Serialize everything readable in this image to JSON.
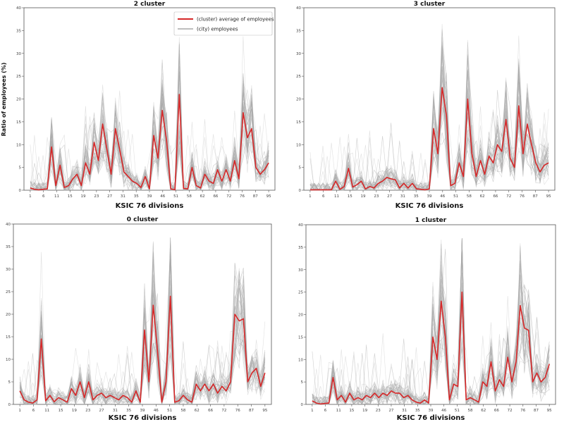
{
  "figure": {
    "ylabel": "Ratio of employees (%)"
  },
  "legend": {
    "avg_label": "(cluster) average of employees",
    "city_label": "(city) employees",
    "avg_color": "#d62728",
    "city_color": "#a9a9a9"
  },
  "chart_data": [
    {
      "type": "line",
      "title": "2 cluster",
      "xlabel": "KSIC 76 divisions",
      "ylabel": "Ratio of employees (%)",
      "ylim": [
        0,
        40
      ],
      "yticks": [
        0,
        5,
        10,
        15,
        20,
        25,
        30,
        35,
        40
      ],
      "xticks": [
        "1",
        "6",
        "11",
        "15",
        "19",
        "23",
        "27",
        "31",
        "35",
        "39",
        "46",
        "51",
        "58",
        "62",
        "66",
        "72",
        "76",
        "87",
        "95"
      ],
      "legend_position": "top-center",
      "series": [
        {
          "name": "(cluster) average of employees",
          "values": [
            0.5,
            0.2,
            0.1,
            0.2,
            0.3,
            9.5,
            1.0,
            5.5,
            0.6,
            1.0,
            2.5,
            3.5,
            1.0,
            6.0,
            3.5,
            10.5,
            6.5,
            14.5,
            9.0,
            3.5,
            13.5,
            9.0,
            4.0,
            3.0,
            2.0,
            1.5,
            0.6,
            3.0,
            0.3,
            12.0,
            7.0,
            17.5,
            11.0,
            0.3,
            0.1,
            21.0,
            0.4,
            0.3,
            5.0,
            1.0,
            0.5,
            3.5,
            2.0,
            1.5,
            4.5,
            2.0,
            4.5,
            2.0,
            6.5,
            2.5,
            17.0,
            11.5,
            13.5,
            5.0,
            3.5,
            4.5,
            6.0
          ]
        }
      ]
    },
    {
      "type": "line",
      "title": "3 cluster",
      "xlabel": "KSIC 76 divisions",
      "ylabel": "",
      "ylim": [
        0,
        40
      ],
      "yticks": [
        0,
        5,
        10,
        15,
        20,
        25,
        30,
        35,
        40
      ],
      "xticks": [
        "1",
        "6",
        "11",
        "15",
        "19",
        "23",
        "27",
        "31",
        "35",
        "39",
        "46",
        "51",
        "58",
        "62",
        "66",
        "72",
        "76",
        "87",
        "95"
      ],
      "series": [
        {
          "name": "(cluster) average of employees",
          "values": [
            0.1,
            0.1,
            0.1,
            0.1,
            0.1,
            0.1,
            2.0,
            0.2,
            0.8,
            4.8,
            0.7,
            1.2,
            2.0,
            0.3,
            0.8,
            0.5,
            1.5,
            2.0,
            2.8,
            2.5,
            2.3,
            0.5,
            1.5,
            0.5,
            1.5,
            0.3,
            0.2,
            0.1,
            0.3,
            13.5,
            8.0,
            22.5,
            16.5,
            1.0,
            1.5,
            6.0,
            3.0,
            20.0,
            8.0,
            3.0,
            6.5,
            3.5,
            7.5,
            6.0,
            10.0,
            8.5,
            15.5,
            7.0,
            5.0,
            18.5,
            8.0,
            14.5,
            10.0,
            6.0,
            4.0,
            5.5,
            6.0
          ]
        }
      ]
    },
    {
      "type": "line",
      "title": "0 cluster",
      "xlabel": "KSIC 76 divisions",
      "ylabel": "",
      "ylim": [
        0,
        40
      ],
      "yticks": [
        0,
        5,
        10,
        15,
        20,
        25,
        30,
        35,
        40
      ],
      "xticks": [
        "1",
        "6",
        "11",
        "15",
        "19",
        "23",
        "27",
        "31",
        "35",
        "39",
        "46",
        "51",
        "58",
        "62",
        "66",
        "72",
        "76",
        "87",
        "95"
      ],
      "series": [
        {
          "name": "(cluster) average of employees",
          "values": [
            3.0,
            1.0,
            0.5,
            0.3,
            1.0,
            14.5,
            0.8,
            2.0,
            0.6,
            1.5,
            1.0,
            0.5,
            3.5,
            2.0,
            5.0,
            1.5,
            5.0,
            1.0,
            2.0,
            2.5,
            1.5,
            2.0,
            1.5,
            1.0,
            2.0,
            1.5,
            0.5,
            3.0,
            0.5,
            16.5,
            5.0,
            22.0,
            12.0,
            0.5,
            5.0,
            24.0,
            0.5,
            0.8,
            2.0,
            1.0,
            0.5,
            4.5,
            3.0,
            4.5,
            3.0,
            4.5,
            2.5,
            4.0,
            3.0,
            5.0,
            20.0,
            18.5,
            19.0,
            5.0,
            7.0,
            8.0,
            4.0,
            7.0
          ]
        }
      ]
    },
    {
      "type": "line",
      "title": "1 cluster",
      "xlabel": "KSIC 76 divisions",
      "ylabel": "",
      "ylim": [
        0,
        40
      ],
      "yticks": [
        0,
        5,
        10,
        15,
        20,
        25,
        30,
        35,
        40
      ],
      "xticks": [
        "1",
        "6",
        "11",
        "15",
        "19",
        "23",
        "27",
        "31",
        "35",
        "39",
        "46",
        "51",
        "58",
        "62",
        "66",
        "72",
        "76",
        "87",
        "95"
      ],
      "series": [
        {
          "name": "(cluster) average of employees",
          "values": [
            0.8,
            0.3,
            0.1,
            0.2,
            0.3,
            6.0,
            1.0,
            2.0,
            0.5,
            2.5,
            1.0,
            1.5,
            1.0,
            2.0,
            1.5,
            2.5,
            1.5,
            2.5,
            2.0,
            3.0,
            2.5,
            2.5,
            1.5,
            2.0,
            1.0,
            0.5,
            0.3,
            1.0,
            0.3,
            15.0,
            10.0,
            23.0,
            15.0,
            1.0,
            4.5,
            4.0,
            25.0,
            1.0,
            1.5,
            1.0,
            0.5,
            5.0,
            4.0,
            9.5,
            3.0,
            5.5,
            4.0,
            10.5,
            5.0,
            9.5,
            22.0,
            17.0,
            16.5,
            5.0,
            7.0,
            5.0,
            6.0,
            9.0
          ]
        }
      ]
    }
  ]
}
